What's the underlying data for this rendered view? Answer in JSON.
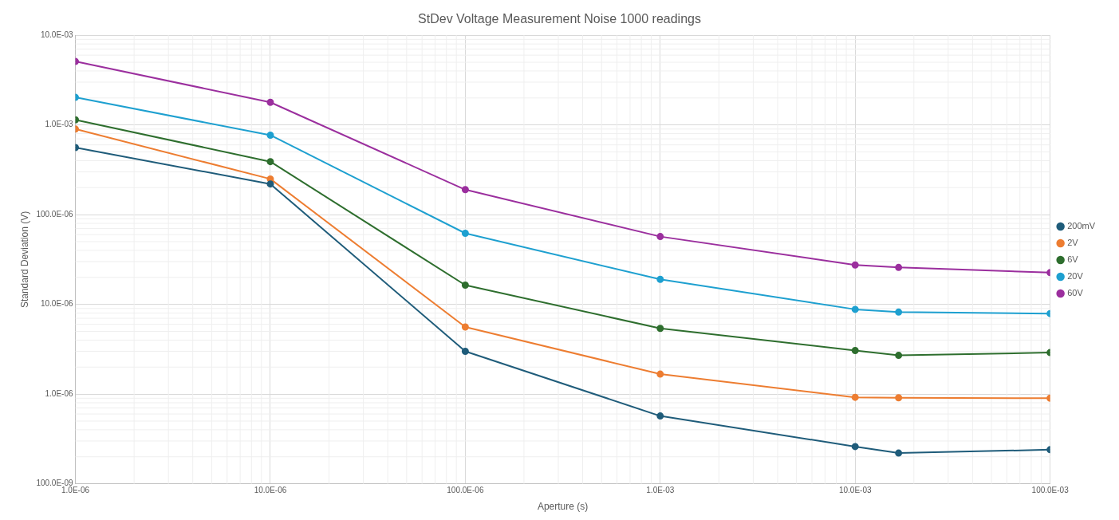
{
  "chart_data": {
    "type": "line",
    "title": "StDev Voltage Measurement Noise 1000 readings",
    "xlabel": "Aperture (s)",
    "ylabel": "Standard Deviation (V)",
    "x": [
      1e-06,
      1e-05,
      0.0001,
      0.001,
      0.01,
      0.0167,
      0.1
    ],
    "series": [
      {
        "name": "200mV",
        "color": "#1f5c7a",
        "values": [
          0.00056,
          0.00022,
          3e-06,
          5.7e-07,
          2.6e-07,
          2.2e-07,
          2.4e-07
        ]
      },
      {
        "name": "2V",
        "color": "#ed7d31",
        "values": [
          0.0009,
          0.00025,
          5.6e-06,
          1.67e-06,
          9.2e-07,
          9.1e-07,
          9e-07
        ]
      },
      {
        "name": "6V",
        "color": "#2e6e2e",
        "values": [
          0.00114,
          0.00039,
          1.64e-05,
          5.4e-06,
          3.06e-06,
          2.7e-06,
          2.9e-06
        ]
      },
      {
        "name": "20V",
        "color": "#1ea0d0",
        "values": [
          0.00203,
          0.00077,
          6.2e-05,
          1.9e-05,
          8.8e-06,
          8.2e-06,
          7.9e-06
        ]
      },
      {
        "name": "60V",
        "color": "#9b2f9e",
        "values": [
          0.0051,
          0.00179,
          0.00019,
          5.7e-05,
          2.75e-05,
          2.58e-05,
          2.26e-05
        ]
      }
    ],
    "log": "xy",
    "xlim": [
      1e-06,
      0.1
    ],
    "ylim": [
      1e-07,
      0.01
    ],
    "xticks": [
      {
        "value": 1e-06,
        "label": "1.0E-06"
      },
      {
        "value": 1e-05,
        "label": "10.0E-06"
      },
      {
        "value": 0.0001,
        "label": "100.0E-06"
      },
      {
        "value": 0.001,
        "label": "1.0E-03"
      },
      {
        "value": 0.01,
        "label": "10.0E-03"
      },
      {
        "value": 0.1,
        "label": "100.0E-03"
      }
    ],
    "yticks": [
      {
        "value": 1e-07,
        "label": "100.0E-09"
      },
      {
        "value": 1e-06,
        "label": "1.0E-06"
      },
      {
        "value": 1e-05,
        "label": "10.0E-06"
      },
      {
        "value": 0.0001,
        "label": "100.0E-06"
      },
      {
        "value": 0.001,
        "label": "1.0E-03"
      },
      {
        "value": 0.01,
        "label": "10.0E-03"
      }
    ],
    "grid": true,
    "legend": "right",
    "marker": "circle",
    "line_style": "solid"
  }
}
